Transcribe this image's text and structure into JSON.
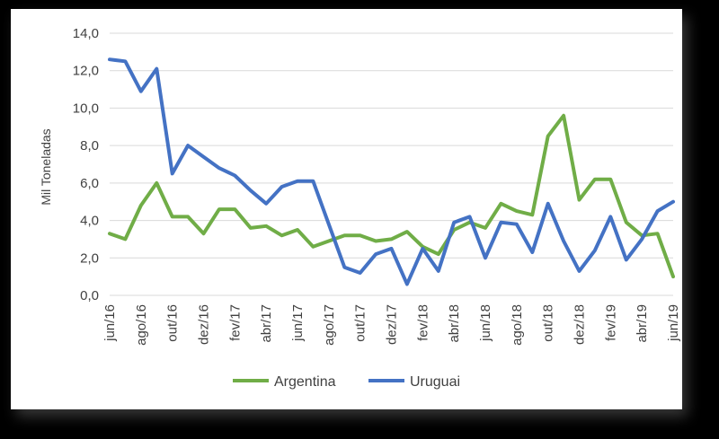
{
  "chart_data": {
    "type": "line",
    "title": "",
    "xlabel": "",
    "ylabel": "Mil Toneladas",
    "ylim": [
      0,
      14
    ],
    "yticks": [
      "0,0",
      "2,0",
      "4,0",
      "6,0",
      "8,0",
      "10,0",
      "12,0",
      "14,0"
    ],
    "grid": true,
    "legend_position": "bottom",
    "categories": [
      "jun/16",
      "jul/16",
      "ago/16",
      "set/16",
      "out/16",
      "nov/16",
      "dez/16",
      "jan/17",
      "fev/17",
      "mar/17",
      "abr/17",
      "mai/17",
      "jun/17",
      "jul/17",
      "ago/17",
      "set/17",
      "out/17",
      "nov/17",
      "dez/17",
      "jan/18",
      "fev/18",
      "mar/18",
      "abr/18",
      "mai/18",
      "jun/18",
      "jul/18",
      "ago/18",
      "set/18",
      "out/18",
      "nov/18",
      "dez/18",
      "jan/19",
      "fev/19",
      "mar/19",
      "abr/19",
      "mai/19",
      "jun/19"
    ],
    "shown_tick_labels": [
      "jun/16",
      "ago/16",
      "out/16",
      "dez/16",
      "fev/17",
      "abr/17",
      "jun/17",
      "ago/17",
      "out/17",
      "dez/17",
      "fev/18",
      "abr/18",
      "jun/18",
      "ago/18",
      "out/18",
      "dez/18",
      "fev/19",
      "abr/19",
      "jun/19"
    ],
    "series": [
      {
        "name": "Argentina",
        "color": "#70ad47",
        "values": [
          3.3,
          3.0,
          4.8,
          6.0,
          4.2,
          4.2,
          3.3,
          4.6,
          4.6,
          3.6,
          3.7,
          3.2,
          3.5,
          2.6,
          2.9,
          3.2,
          3.2,
          2.9,
          3.0,
          3.4,
          2.6,
          2.2,
          3.5,
          3.9,
          3.6,
          4.9,
          4.5,
          4.3,
          8.5,
          9.6,
          5.1,
          6.2,
          6.2,
          3.9,
          3.2,
          3.3,
          1.0
        ]
      },
      {
        "name": "Uruguai",
        "color": "#4472c4",
        "values": [
          12.6,
          12.5,
          10.9,
          12.1,
          6.5,
          8.0,
          7.4,
          6.8,
          6.4,
          5.6,
          4.9,
          5.8,
          6.1,
          6.1,
          3.8,
          1.5,
          1.2,
          2.2,
          2.5,
          0.6,
          2.5,
          1.3,
          3.9,
          4.2,
          2.0,
          3.9,
          3.8,
          2.3,
          4.9,
          2.9,
          1.3,
          2.4,
          4.2,
          1.9,
          3.0,
          4.5,
          5.0
        ]
      }
    ]
  }
}
